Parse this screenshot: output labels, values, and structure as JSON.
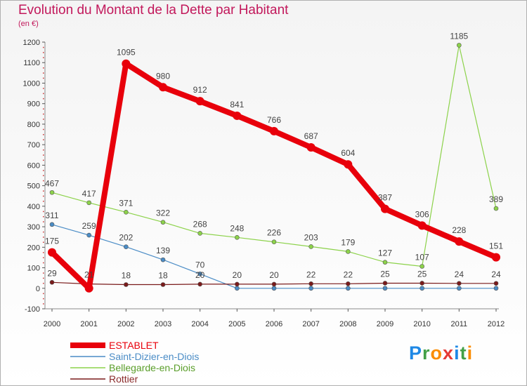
{
  "title": "Evolution du Montant de la Dette par Habitant",
  "subtitle": "(en €)",
  "logo": {
    "text": "Proxiti",
    "letters": [
      {
        "ch": "P",
        "color": "#1e88e5"
      },
      {
        "ch": "r",
        "color": "#43a047"
      },
      {
        "ch": "o",
        "color": "#fb8c00"
      },
      {
        "ch": "x",
        "color": "#e53935"
      },
      {
        "ch": "i",
        "color": "#1e88e5"
      },
      {
        "ch": "t",
        "color": "#43a047"
      },
      {
        "ch": "i",
        "color": "#fb8c00"
      }
    ]
  },
  "chart_data": {
    "type": "line",
    "title": "Evolution du Montant de la Dette par Habitant",
    "subtitle": "(en €)",
    "x": [
      2000,
      2001,
      2002,
      2003,
      2004,
      2005,
      2006,
      2007,
      2008,
      2009,
      2010,
      2011,
      2012
    ],
    "ylim": [
      -100,
      1200
    ],
    "yticks": [
      -100,
      0,
      100,
      200,
      300,
      400,
      500,
      600,
      700,
      800,
      900,
      1000,
      1100,
      1200
    ],
    "grid": false,
    "legend_position": "bottom-left",
    "series": [
      {
        "name": "ESTABLET",
        "color": "#e8000b",
        "legend_text_color": "#e8000b",
        "values": [
          175,
          0,
          1095,
          980,
          912,
          841,
          766,
          687,
          604,
          387,
          306,
          228,
          151
        ],
        "labels": [
          "175",
          "",
          "1095",
          "980",
          "912",
          "841",
          "766",
          "687",
          "604",
          "387",
          "306",
          "228",
          "151"
        ],
        "emphasis": "thick"
      },
      {
        "name": "Saint-Dizier-en-Diois",
        "color": "#4a8cc6",
        "legend_text_color": "#4a8cc6",
        "values": [
          311,
          259,
          202,
          139,
          70,
          0,
          0,
          0,
          0,
          0,
          0,
          0,
          0
        ],
        "labels": [
          "311",
          "259",
          "202",
          "139",
          "70",
          "",
          "",
          "",
          "",
          "",
          "",
          "",
          ""
        ]
      },
      {
        "name": "Bellegarde-en-Diois",
        "color": "#8cd24a",
        "legend_text_color": "#5a9e2a",
        "values": [
          467,
          417,
          371,
          322,
          268,
          248,
          226,
          203,
          179,
          127,
          107,
          1185,
          389
        ],
        "labels": [
          "467",
          "417",
          "371",
          "322",
          "268",
          "248",
          "226",
          "203",
          "179",
          "127",
          "107",
          "1185",
          "389"
        ]
      },
      {
        "name": "Rottier",
        "color": "#7a1a1a",
        "legend_text_color": "#8a2a2a",
        "values": [
          29,
          21,
          18,
          18,
          20,
          20,
          20,
          22,
          22,
          25,
          25,
          24,
          24
        ],
        "labels": [
          "29",
          "21",
          "18",
          "18",
          "20",
          "20",
          "20",
          "22",
          "22",
          "25",
          "25",
          "24",
          "24"
        ]
      }
    ]
  }
}
